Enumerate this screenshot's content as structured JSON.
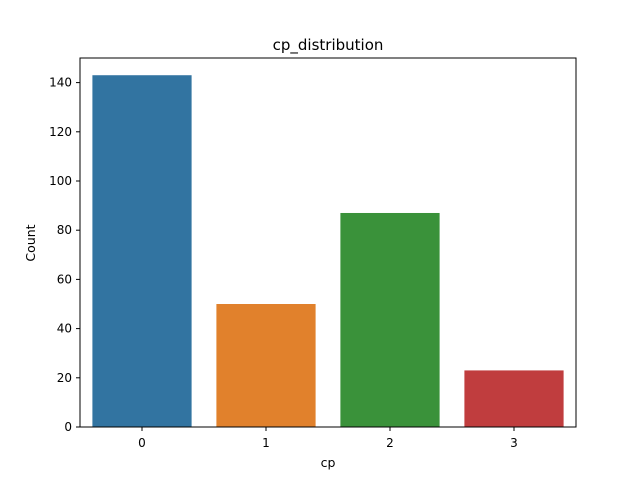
{
  "chart_data": {
    "type": "bar",
    "title": "cp_distribution",
    "xlabel": "cp",
    "ylabel": "Count",
    "categories": [
      "0",
      "1",
      "2",
      "3"
    ],
    "values": [
      143,
      50,
      87,
      23
    ],
    "ylim": [
      0,
      150
    ],
    "yticks": [
      0,
      20,
      40,
      60,
      80,
      100,
      120,
      140
    ],
    "colors": [
      "#3274a1",
      "#e1812c",
      "#3a923a",
      "#c03d3e"
    ],
    "grid": false,
    "legend": "none"
  }
}
